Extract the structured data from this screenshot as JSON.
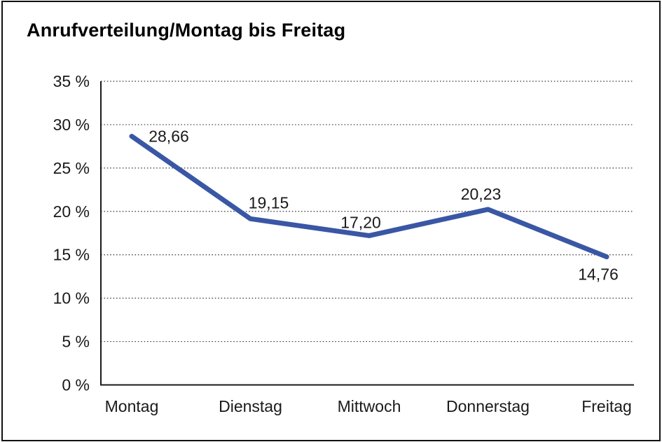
{
  "title": "Anrufverteilung/Montag bis Freitag",
  "chart_data": {
    "type": "line",
    "title": "Anrufverteilung/Montag bis Freitag",
    "categories": [
      "Montag",
      "Dienstag",
      "Mittwoch",
      "Donnerstag",
      "Freitag"
    ],
    "series": [
      {
        "name": "Anrufverteilung",
        "values": [
          28.66,
          19.15,
          17.2,
          20.23,
          14.76
        ],
        "data_labels": [
          "28,66",
          "19,15",
          "17,20",
          "20,23",
          "14,76"
        ]
      }
    ],
    "xlabel": "",
    "ylabel": "",
    "ylim": [
      0,
      35
    ],
    "y_ticks": [
      0,
      5,
      10,
      15,
      20,
      25,
      30,
      35
    ],
    "y_tick_labels": [
      "0 %",
      "5 %",
      "10 %",
      "15 %",
      "20 %",
      "25 %",
      "30 %",
      "35 %"
    ],
    "grid": "horizontal-dotted",
    "legend": "none",
    "colors": {
      "line": "#3A57A5",
      "axis": "#1a1a1a",
      "gridline": "#3a3a3a",
      "text": "#1a1a1a"
    }
  }
}
